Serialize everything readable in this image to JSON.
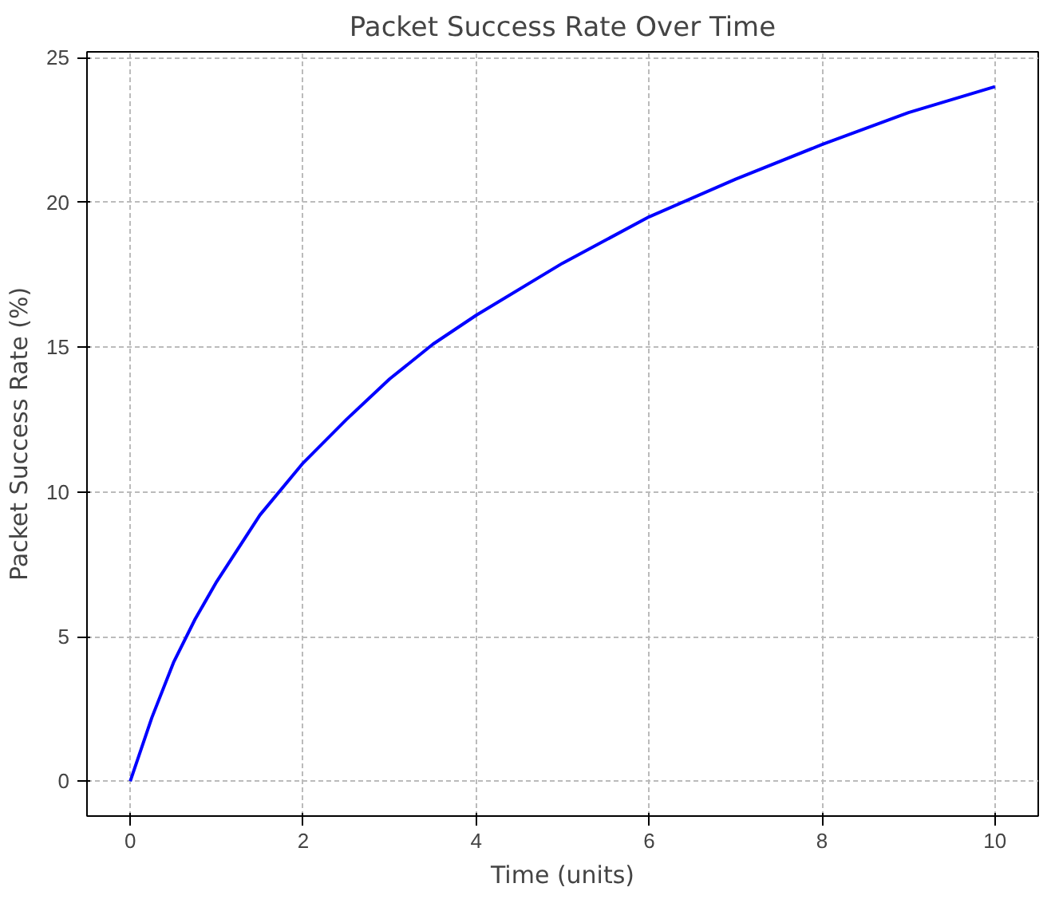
{
  "chart_data": {
    "type": "line",
    "title": "Packet Success Rate Over Time",
    "xlabel": "Time (units)",
    "ylabel": "Packet Success Rate (%)",
    "x": [
      0,
      0.25,
      0.5,
      0.75,
      1,
      1.5,
      2,
      2.5,
      3,
      3.5,
      4,
      5,
      6,
      7,
      8,
      9,
      10
    ],
    "series": [
      {
        "color": "#0000ff",
        "values": [
          0,
          2.2,
          4.1,
          5.6,
          6.9,
          9.2,
          11.0,
          12.5,
          13.9,
          15.1,
          16.1,
          17.9,
          19.5,
          20.8,
          22.0,
          23.1,
          24.0
        ]
      }
    ],
    "xlim": [
      -0.5,
      10.5
    ],
    "ylim": [
      -1.2,
      25.2
    ],
    "xticks": [
      0,
      2,
      4,
      6,
      8,
      10
    ],
    "yticks": [
      0,
      5,
      10,
      15,
      20,
      25
    ],
    "grid": true,
    "line_style": "solid",
    "marker": "none"
  }
}
